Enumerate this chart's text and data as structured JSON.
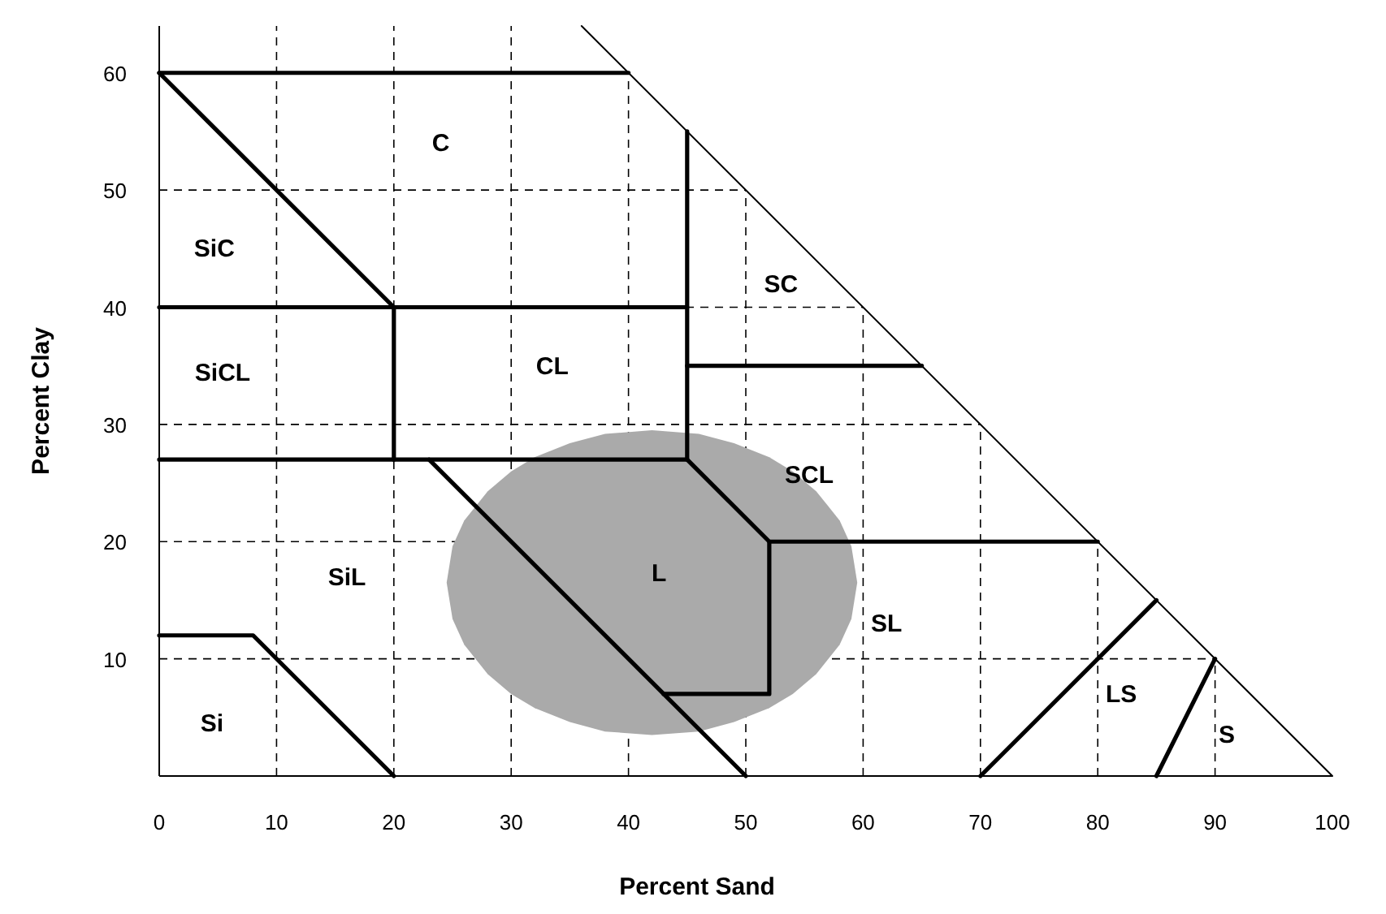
{
  "chart_data": {
    "type": "line",
    "xlabel": "Percent Sand",
    "ylabel": "Percent Clay",
    "xlim": [
      0,
      100
    ],
    "ylim": [
      0,
      64
    ],
    "xticks": [
      0,
      10,
      20,
      30,
      40,
      50,
      60,
      70,
      80,
      90,
      100
    ],
    "yticks": [
      {
        "value": 0,
        "label": null
      },
      10,
      20,
      30,
      40,
      50,
      60
    ],
    "grid": true,
    "line_style": "solid",
    "marker": "none",
    "series": [
      {
        "type": "area",
        "color": "#aaaaaa",
        "x": [
          24.5,
          25,
          26,
          28,
          30,
          32,
          35,
          38,
          42,
          46,
          49,
          52,
          54,
          56,
          58,
          59,
          59.5,
          59,
          58,
          56,
          54,
          52,
          49,
          46,
          42,
          38,
          35,
          32,
          30,
          28,
          26,
          25
        ],
        "values": [
          16.5,
          19.6,
          21.8,
          24.3,
          26.0,
          27.2,
          28.4,
          29.2,
          29.5,
          29.2,
          28.4,
          27.2,
          26.0,
          24.3,
          21.8,
          19.6,
          16.5,
          13.4,
          11.2,
          8.7,
          7.0,
          5.8,
          4.6,
          3.8,
          3.5,
          3.8,
          4.6,
          5.8,
          7.0,
          8.7,
          11.2,
          13.4
        ]
      },
      {
        "color": "#000000",
        "x": [
          0,
          40
        ],
        "values": [
          60,
          60
        ]
      },
      {
        "color": "#000000",
        "x": [
          0,
          20
        ],
        "values": [
          60,
          40
        ]
      },
      {
        "color": "#000000",
        "x": [
          0,
          45
        ],
        "values": [
          40,
          40
        ]
      },
      {
        "color": "#000000",
        "x": [
          45,
          45
        ],
        "values": [
          27,
          55
        ]
      },
      {
        "color": "#000000",
        "x": [
          20,
          20
        ],
        "values": [
          27,
          40
        ]
      },
      {
        "color": "#000000",
        "x": [
          0,
          45,
          52,
          80
        ],
        "values": [
          27,
          27,
          20,
          20
        ]
      },
      {
        "color": "#000000",
        "x": [
          45,
          65
        ],
        "values": [
          35,
          35
        ]
      },
      {
        "color": "#000000",
        "x": [
          52,
          52,
          43
        ],
        "values": [
          20,
          7,
          7
        ]
      },
      {
        "color": "#000000",
        "x": [
          23,
          50
        ],
        "values": [
          27,
          0
        ]
      },
      {
        "color": "#000000",
        "x": [
          0,
          8,
          20
        ],
        "values": [
          12,
          12,
          0
        ]
      },
      {
        "color": "#000000",
        "x": [
          70,
          85
        ],
        "values": [
          0,
          15
        ]
      },
      {
        "color": "#000000",
        "x": [
          85,
          90
        ],
        "values": [
          0,
          10
        ]
      },
      {
        "color": "#000000",
        "x": [
          36,
          100
        ],
        "values": [
          64,
          0
        ]
      }
    ],
    "annotations": [
      "C",
      "SiC",
      "SiCL",
      "CL",
      "SC",
      "SCL",
      "L",
      "SiL",
      "SL",
      "LS",
      "S",
      "Si"
    ]
  }
}
